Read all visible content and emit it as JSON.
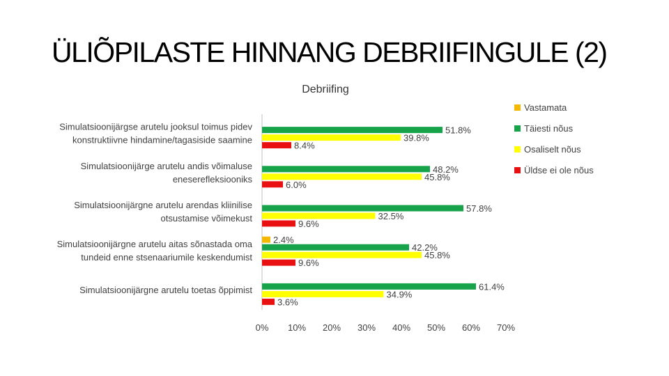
{
  "slide": {
    "title": "ÜLIÕPILASTE HINNANG DEBRIIFINGULE (2)"
  },
  "chart_data": {
    "type": "bar",
    "orientation": "horizontal",
    "title": "Debriifing",
    "categories": [
      [
        "Simulatsioonijärgse arutelu jooksul toimus pidev",
        "konstruktiivne hindamine/tagasiside saamine"
      ],
      [
        "Simulatsioonijärge arutelu andis võimaluse",
        "eneserefleksiooniks"
      ],
      [
        "Simulatsioonijärgne arutelu arendas kliinilise",
        "otsustamise võimekust"
      ],
      [
        "Simulatsioonijärgne arutelu aitas sõnastada oma",
        "tundeid enne stsenaariumile keskendumist"
      ],
      [
        "Simulatsioonijärgne arutelu toetas õppimist"
      ]
    ],
    "series": [
      {
        "name": "Vastamata",
        "color": "#F5B800",
        "values": [
          null,
          null,
          null,
          2.4,
          null
        ],
        "labels": [
          "",
          "",
          "",
          "2.4%",
          ""
        ]
      },
      {
        "name": "Täiesti nõus",
        "color": "#16A34A",
        "values": [
          51.8,
          48.2,
          57.8,
          42.2,
          61.4
        ],
        "labels": [
          "51.8%",
          "48.2%",
          "57.8%",
          "42.2%",
          "61.4%"
        ]
      },
      {
        "name": "Osaliselt nõus",
        "color": "#FFFF00",
        "values": [
          39.8,
          45.8,
          32.5,
          45.8,
          34.9
        ],
        "labels": [
          "39.8%",
          "45.8%",
          "32.5%",
          "45.8%",
          "34.9%"
        ]
      },
      {
        "name": "Üldse ei ole nõus",
        "color": "#E81010",
        "values": [
          8.4,
          6.0,
          9.6,
          9.6,
          3.6
        ],
        "labels": [
          "8.4%",
          "6.0%",
          "9.6%",
          "9.6%",
          "3.6%"
        ]
      }
    ],
    "xlim": [
      0,
      70
    ],
    "xticks": [
      0,
      10,
      20,
      30,
      40,
      50,
      60,
      70
    ],
    "xtick_labels": [
      "0%",
      "10%",
      "20%",
      "30%",
      "40%",
      "50%",
      "60%",
      "70%"
    ],
    "grid": false,
    "legend": "right"
  }
}
